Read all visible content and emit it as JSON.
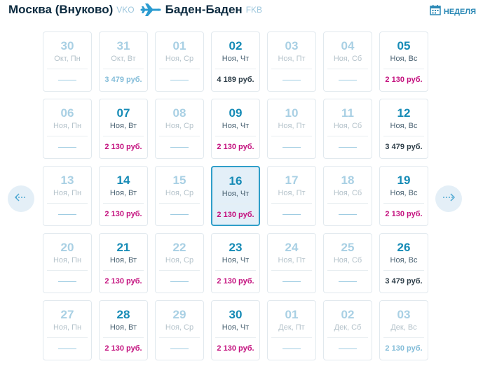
{
  "route": {
    "origin_city": "Москва (Внуково)",
    "origin_code": "VKO",
    "destination_city": "Баден-Баден",
    "destination_code": "FKB"
  },
  "view_toggle": {
    "label": "Неделя"
  },
  "colors": {
    "accent": "#168bb6",
    "best_price": "#c4127f",
    "muted": "#a9d0e4"
  },
  "icons": {
    "plane": "plane-icon",
    "calendar": "calendar-icon",
    "prev": "arrow-left-icon",
    "next": "arrow-right-icon"
  },
  "calendar": {
    "weeks": [
      [
        {
          "day": "30",
          "wd": "Окт, Пн",
          "price": "",
          "state": "muted",
          "price_style": ""
        },
        {
          "day": "31",
          "wd": "Окт, Вт",
          "price": "3 479 руб.",
          "state": "muted",
          "price_style": "faded"
        },
        {
          "day": "01",
          "wd": "Ноя, Ср",
          "price": "",
          "state": "muted",
          "price_style": ""
        },
        {
          "day": "02",
          "wd": "Ноя, Чт",
          "price": "4 189 руб.",
          "state": "active",
          "price_style": "normal"
        },
        {
          "day": "03",
          "wd": "Ноя, Пт",
          "price": "",
          "state": "muted",
          "price_style": ""
        },
        {
          "day": "04",
          "wd": "Ноя, Сб",
          "price": "",
          "state": "muted",
          "price_style": ""
        },
        {
          "day": "05",
          "wd": "Ноя, Вс",
          "price": "2 130 руб.",
          "state": "active",
          "price_style": "best"
        }
      ],
      [
        {
          "day": "06",
          "wd": "Ноя, Пн",
          "price": "",
          "state": "muted",
          "price_style": ""
        },
        {
          "day": "07",
          "wd": "Ноя, Вт",
          "price": "2 130 руб.",
          "state": "active",
          "price_style": "best"
        },
        {
          "day": "08",
          "wd": "Ноя, Ср",
          "price": "",
          "state": "muted",
          "price_style": ""
        },
        {
          "day": "09",
          "wd": "Ноя, Чт",
          "price": "2 130 руб.",
          "state": "active",
          "price_style": "best"
        },
        {
          "day": "10",
          "wd": "Ноя, Пт",
          "price": "",
          "state": "muted",
          "price_style": ""
        },
        {
          "day": "11",
          "wd": "Ноя, Сб",
          "price": "",
          "state": "muted",
          "price_style": ""
        },
        {
          "day": "12",
          "wd": "Ноя, Вс",
          "price": "3 479 руб.",
          "state": "active",
          "price_style": "normal"
        }
      ],
      [
        {
          "day": "13",
          "wd": "Ноя, Пн",
          "price": "",
          "state": "muted",
          "price_style": ""
        },
        {
          "day": "14",
          "wd": "Ноя, Вт",
          "price": "2 130 руб.",
          "state": "active",
          "price_style": "best"
        },
        {
          "day": "15",
          "wd": "Ноя, Ср",
          "price": "",
          "state": "muted",
          "price_style": ""
        },
        {
          "day": "16",
          "wd": "Ноя, Чт",
          "price": "2 130 руб.",
          "state": "active",
          "price_style": "best",
          "selected": true
        },
        {
          "day": "17",
          "wd": "Ноя, Пт",
          "price": "",
          "state": "muted",
          "price_style": ""
        },
        {
          "day": "18",
          "wd": "Ноя, Сб",
          "price": "",
          "state": "muted",
          "price_style": ""
        },
        {
          "day": "19",
          "wd": "Ноя, Вс",
          "price": "2 130 руб.",
          "state": "active",
          "price_style": "best"
        }
      ],
      [
        {
          "day": "20",
          "wd": "Ноя, Пн",
          "price": "",
          "state": "muted",
          "price_style": ""
        },
        {
          "day": "21",
          "wd": "Ноя, Вт",
          "price": "2 130 руб.",
          "state": "active",
          "price_style": "best"
        },
        {
          "day": "22",
          "wd": "Ноя, Ср",
          "price": "",
          "state": "muted",
          "price_style": ""
        },
        {
          "day": "23",
          "wd": "Ноя, Чт",
          "price": "2 130 руб.",
          "state": "active",
          "price_style": "best"
        },
        {
          "day": "24",
          "wd": "Ноя, Пт",
          "price": "",
          "state": "muted",
          "price_style": ""
        },
        {
          "day": "25",
          "wd": "Ноя, Сб",
          "price": "",
          "state": "muted",
          "price_style": ""
        },
        {
          "day": "26",
          "wd": "Ноя, Вс",
          "price": "3 479 руб.",
          "state": "active",
          "price_style": "normal"
        }
      ],
      [
        {
          "day": "27",
          "wd": "Ноя, Пн",
          "price": "",
          "state": "muted",
          "price_style": ""
        },
        {
          "day": "28",
          "wd": "Ноя, Вт",
          "price": "2 130 руб.",
          "state": "active",
          "price_style": "best"
        },
        {
          "day": "29",
          "wd": "Ноя, Ср",
          "price": "",
          "state": "muted",
          "price_style": ""
        },
        {
          "day": "30",
          "wd": "Ноя, Чт",
          "price": "2 130 руб.",
          "state": "active",
          "price_style": "best"
        },
        {
          "day": "01",
          "wd": "Дек, Пт",
          "price": "",
          "state": "muted",
          "price_style": ""
        },
        {
          "day": "02",
          "wd": "Дек, Сб",
          "price": "",
          "state": "muted",
          "price_style": ""
        },
        {
          "day": "03",
          "wd": "Дек, Вс",
          "price": "2 130 руб.",
          "state": "muted",
          "price_style": "faded"
        }
      ]
    ]
  }
}
